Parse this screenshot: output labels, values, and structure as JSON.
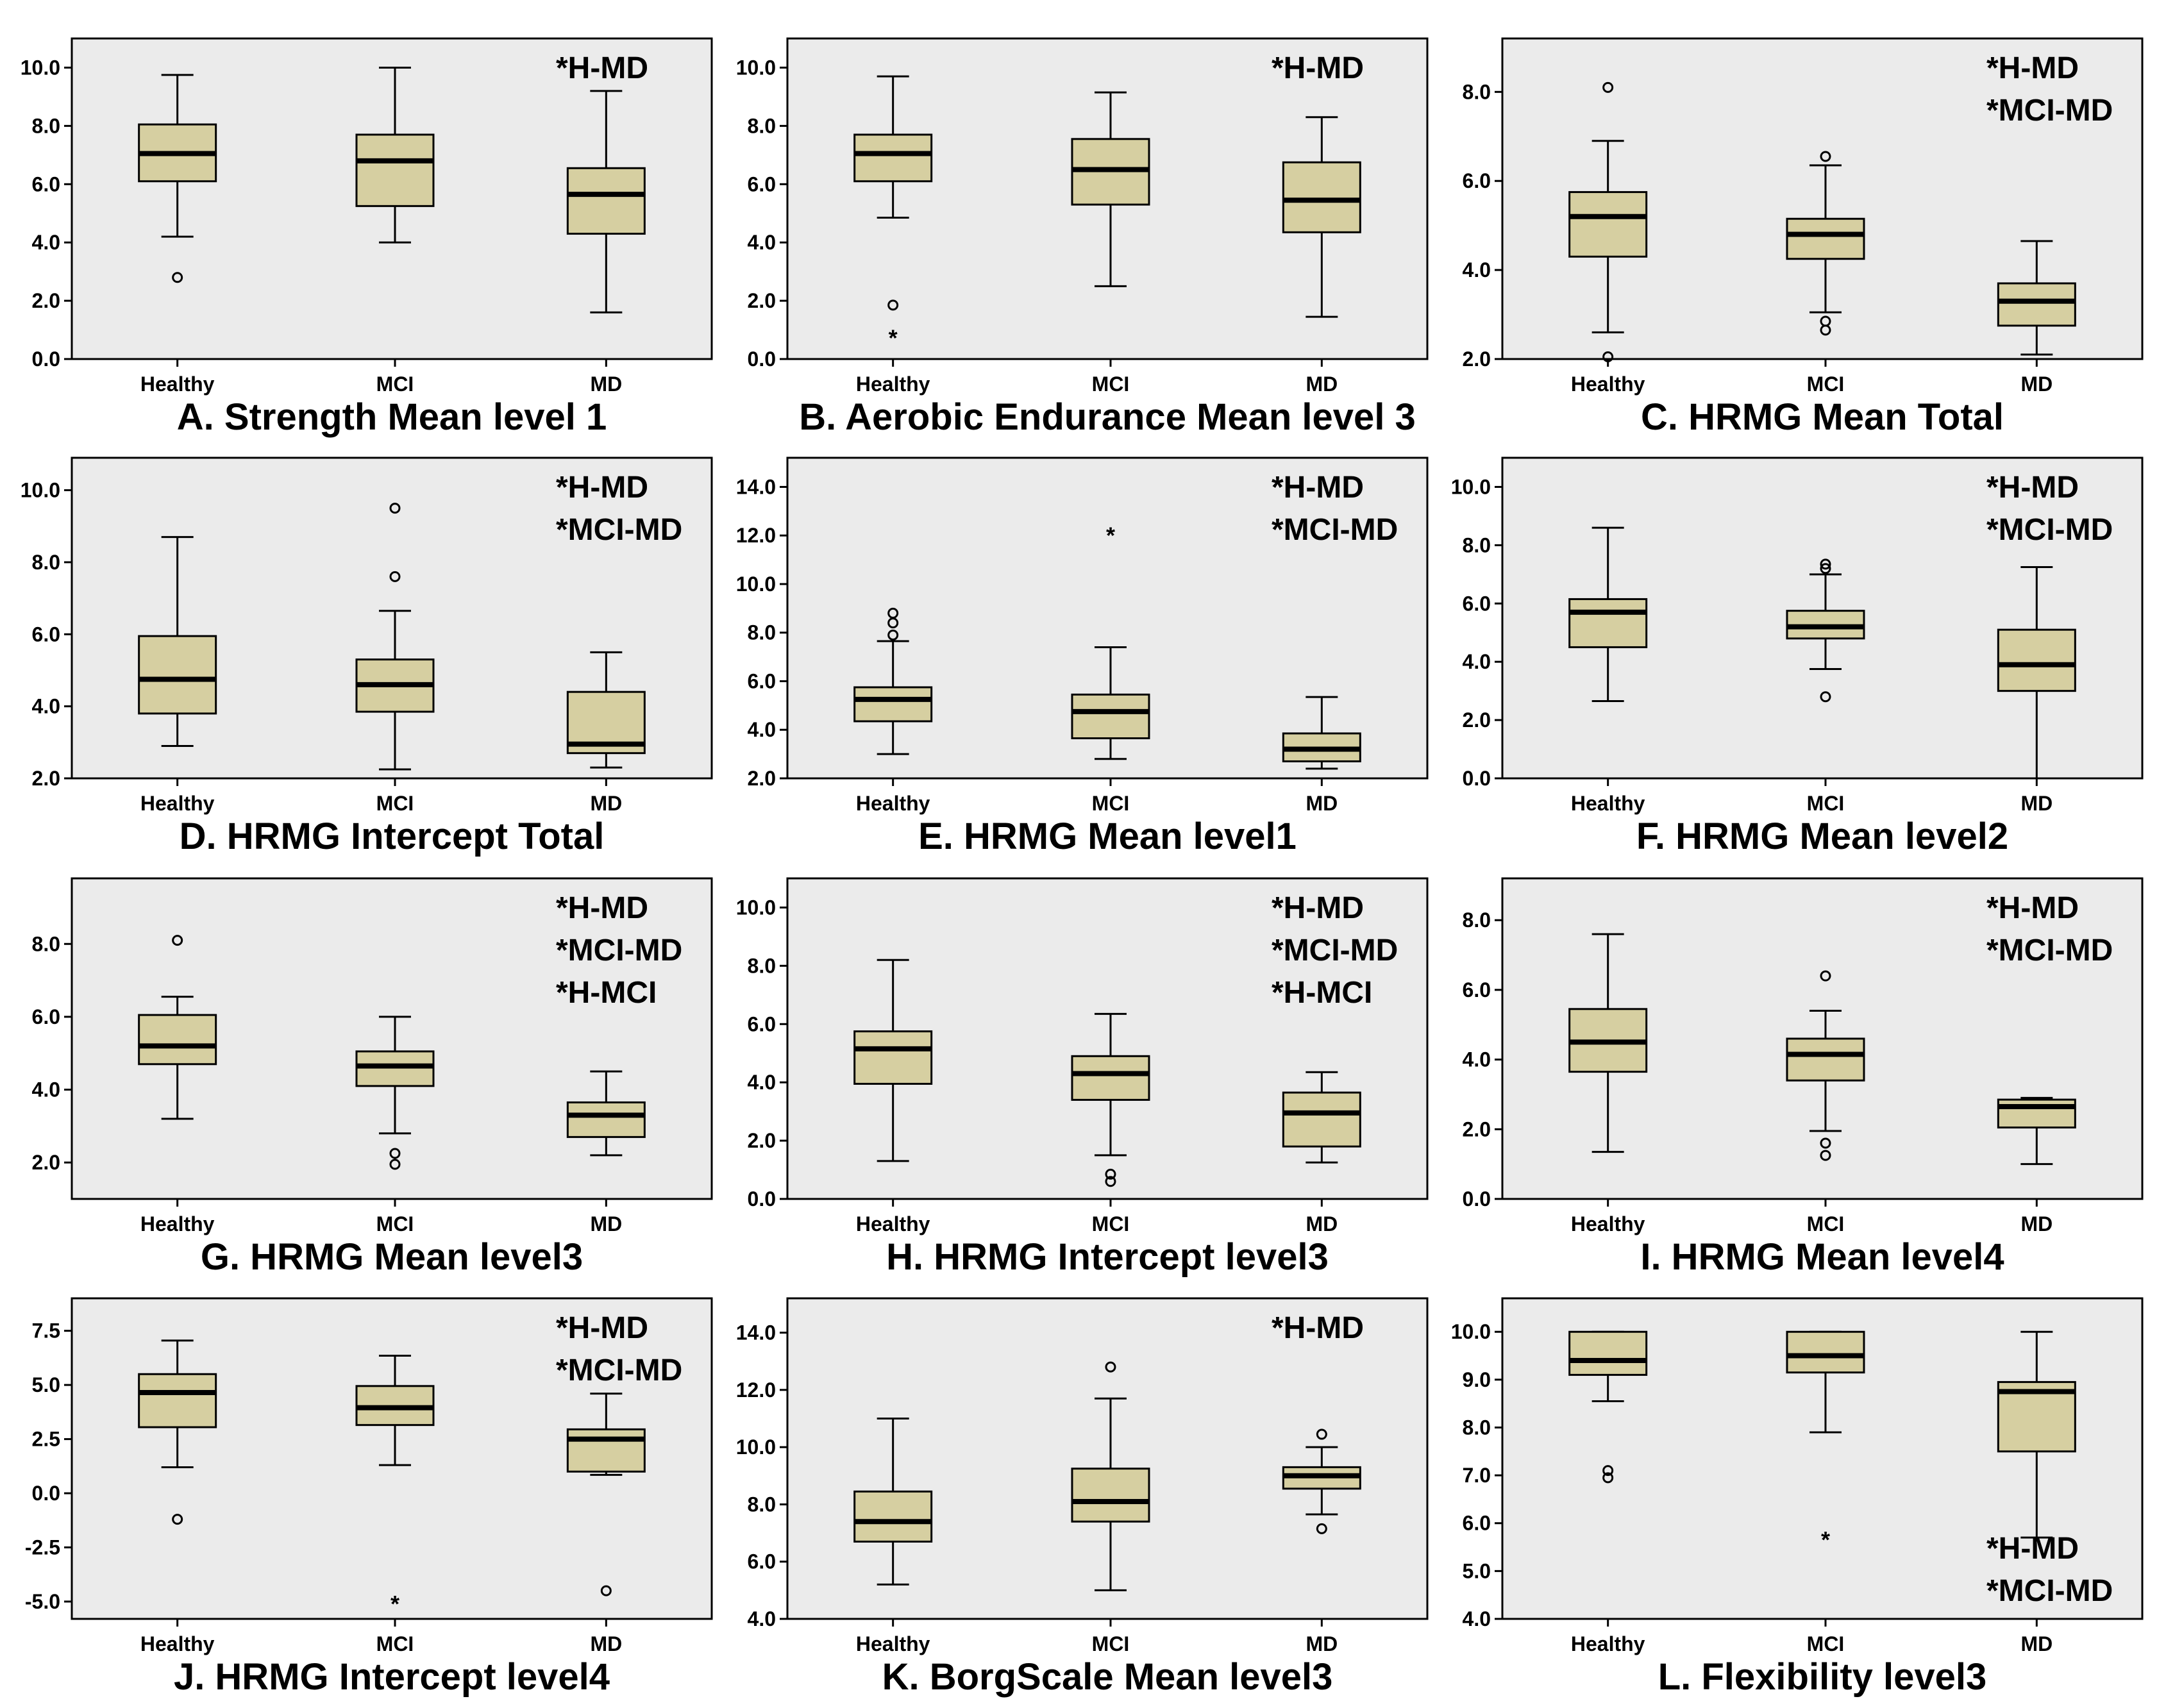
{
  "colors": {
    "panel_bg": "#ebebeb",
    "box_fill": "#d6cfa1",
    "stroke": "#000000"
  },
  "chart_data": [
    {
      "type": "boxplot",
      "title": "A. Strength Mean level 1",
      "categories": [
        "Healthy",
        "MCI",
        "MD"
      ],
      "yticks": [
        "0.0",
        "2.0",
        "4.0",
        "6.0",
        "8.0",
        "10.0"
      ],
      "ylim": [
        0,
        11
      ],
      "boxes": [
        {
          "min": 4.2,
          "q1": 6.1,
          "median": 7.05,
          "q3": 8.05,
          "max": 9.75
        },
        {
          "min": 4.0,
          "q1": 5.25,
          "median": 6.8,
          "q3": 7.7,
          "max": 10.0
        },
        {
          "min": 1.6,
          "q1": 4.3,
          "median": 5.65,
          "q3": 6.55,
          "max": 9.2
        }
      ],
      "outliers": [
        {
          "group": 0,
          "value": 2.8,
          "symbol": "circle"
        }
      ],
      "annotations": [
        "*H-MD"
      ]
    },
    {
      "type": "boxplot",
      "title": "B. Aerobic Endurance Mean level 3",
      "categories": [
        "Healthy",
        "MCI",
        "MD"
      ],
      "yticks": [
        "0.0",
        "2.0",
        "4.0",
        "6.0",
        "8.0",
        "10.0"
      ],
      "ylim": [
        0,
        11
      ],
      "boxes": [
        {
          "min": 4.85,
          "q1": 6.1,
          "median": 7.05,
          "q3": 7.7,
          "max": 9.7
        },
        {
          "min": 2.5,
          "q1": 5.3,
          "median": 6.5,
          "q3": 7.55,
          "max": 9.15
        },
        {
          "min": 1.45,
          "q1": 4.35,
          "median": 5.45,
          "q3": 6.75,
          "max": 8.3
        }
      ],
      "outliers": [
        {
          "group": 0,
          "value": 1.85,
          "symbol": "circle"
        },
        {
          "group": 0,
          "value": 0.8,
          "symbol": "star"
        }
      ],
      "annotations": [
        "*H-MD"
      ]
    },
    {
      "type": "boxplot",
      "title": "C. HRMG Mean Total",
      "categories": [
        "Healthy",
        "MCI",
        "MD"
      ],
      "yticks": [
        "2.0",
        "4.0",
        "6.0",
        "8.0"
      ],
      "ylim": [
        2,
        9.2
      ],
      "boxes": [
        {
          "min": 2.6,
          "q1": 4.3,
          "median": 5.2,
          "q3": 5.75,
          "max": 6.9
        },
        {
          "min": 3.05,
          "q1": 4.25,
          "median": 4.8,
          "q3": 5.15,
          "max": 6.35
        },
        {
          "min": 2.1,
          "q1": 2.75,
          "median": 3.3,
          "q3": 3.7,
          "max": 4.65
        }
      ],
      "outliers": [
        {
          "group": 0,
          "value": 8.1,
          "symbol": "circle"
        },
        {
          "group": 0,
          "value": 2.05,
          "symbol": "circle"
        },
        {
          "group": 1,
          "value": 6.55,
          "symbol": "circle"
        },
        {
          "group": 1,
          "value": 2.85,
          "symbol": "circle"
        },
        {
          "group": 1,
          "value": 2.65,
          "symbol": "circle"
        }
      ],
      "annotations": [
        "*H-MD",
        "*MCI-MD"
      ]
    },
    {
      "type": "boxplot",
      "title": "D. HRMG Intercept Total",
      "categories": [
        "Healthy",
        "MCI",
        "MD"
      ],
      "yticks": [
        "2.0",
        "4.0",
        "6.0",
        "8.0",
        "10.0"
      ],
      "ylim": [
        2,
        10.9
      ],
      "boxes": [
        {
          "min": 2.9,
          "q1": 3.8,
          "median": 4.75,
          "q3": 5.95,
          "max": 8.7
        },
        {
          "min": 2.25,
          "q1": 3.85,
          "median": 4.6,
          "q3": 5.3,
          "max": 6.65
        },
        {
          "min": 2.3,
          "q1": 2.7,
          "median": 2.95,
          "q3": 4.4,
          "max": 5.5
        }
      ],
      "outliers": [
        {
          "group": 1,
          "value": 9.5,
          "symbol": "circle"
        },
        {
          "group": 1,
          "value": 7.6,
          "symbol": "circle"
        }
      ],
      "annotations": [
        "*H-MD",
        "*MCI-MD"
      ]
    },
    {
      "type": "boxplot",
      "title": "E. HRMG Mean level1",
      "categories": [
        "Healthy",
        "MCI",
        "MD"
      ],
      "yticks": [
        "2.0",
        "4.0",
        "6.0",
        "8.0",
        "10.0",
        "12.0",
        "14.0"
      ],
      "ylim": [
        2,
        15.2
      ],
      "boxes": [
        {
          "min": 3.0,
          "q1": 4.35,
          "median": 5.25,
          "q3": 5.75,
          "max": 7.65
        },
        {
          "min": 2.8,
          "q1": 3.65,
          "median": 4.75,
          "q3": 5.45,
          "max": 7.4
        },
        {
          "min": 2.4,
          "q1": 2.7,
          "median": 3.2,
          "q3": 3.85,
          "max": 5.35
        }
      ],
      "outliers": [
        {
          "group": 0,
          "value": 8.8,
          "symbol": "circle"
        },
        {
          "group": 0,
          "value": 8.4,
          "symbol": "circle"
        },
        {
          "group": 0,
          "value": 7.9,
          "symbol": "circle"
        },
        {
          "group": 1,
          "value": 12.1,
          "symbol": "star"
        }
      ],
      "annotations": [
        "*H-MD",
        "*MCI-MD"
      ]
    },
    {
      "type": "boxplot",
      "title": "F. HRMG Mean level2",
      "categories": [
        "Healthy",
        "MCI",
        "MD"
      ],
      "yticks": [
        "0.0",
        "2.0",
        "4.0",
        "6.0",
        "8.0",
        "10.0"
      ],
      "ylim": [
        0,
        11
      ],
      "boxes": [
        {
          "min": 2.65,
          "q1": 4.5,
          "median": 5.7,
          "q3": 6.15,
          "max": 8.6
        },
        {
          "min": 3.75,
          "q1": 4.8,
          "median": 5.2,
          "q3": 5.75,
          "max": 7.0
        },
        {
          "min": 0.0,
          "q1": 3.0,
          "median": 3.9,
          "q3": 5.1,
          "max": 7.25
        }
      ],
      "outliers": [
        {
          "group": 1,
          "value": 7.35,
          "symbol": "circle"
        },
        {
          "group": 1,
          "value": 7.2,
          "symbol": "circle"
        },
        {
          "group": 1,
          "value": 2.8,
          "symbol": "circle"
        }
      ],
      "annotations": [
        "*H-MD",
        "*MCI-MD"
      ]
    },
    {
      "type": "boxplot",
      "title": "G. HRMG Mean level3",
      "categories": [
        "Healthy",
        "MCI",
        "MD"
      ],
      "yticks": [
        "2.0",
        "4.0",
        "6.0",
        "8.0"
      ],
      "ylim": [
        1,
        9.8
      ],
      "boxes": [
        {
          "min": 3.2,
          "q1": 4.7,
          "median": 5.2,
          "q3": 6.05,
          "max": 6.55
        },
        {
          "min": 2.8,
          "q1": 4.1,
          "median": 4.65,
          "q3": 5.05,
          "max": 6.0
        },
        {
          "min": 2.2,
          "q1": 2.7,
          "median": 3.3,
          "q3": 3.65,
          "max": 4.5
        }
      ],
      "outliers": [
        {
          "group": 0,
          "value": 8.1,
          "symbol": "circle"
        },
        {
          "group": 1,
          "value": 2.25,
          "symbol": "circle"
        },
        {
          "group": 1,
          "value": 1.95,
          "symbol": "circle"
        }
      ],
      "annotations": [
        "*H-MD",
        "*MCI-MD",
        "*H-MCI"
      ]
    },
    {
      "type": "boxplot",
      "title": "H. HRMG Intercept level3",
      "categories": [
        "Healthy",
        "MCI",
        "MD"
      ],
      "yticks": [
        "0.0",
        "2.0",
        "4.0",
        "6.0",
        "8.0",
        "10.0"
      ],
      "ylim": [
        0,
        11
      ],
      "boxes": [
        {
          "min": 1.3,
          "q1": 3.95,
          "median": 5.15,
          "q3": 5.75,
          "max": 8.2
        },
        {
          "min": 1.5,
          "q1": 3.4,
          "median": 4.3,
          "q3": 4.9,
          "max": 6.35
        },
        {
          "min": 1.25,
          "q1": 1.8,
          "median": 2.95,
          "q3": 3.65,
          "max": 4.35
        }
      ],
      "outliers": [
        {
          "group": 1,
          "value": 0.85,
          "symbol": "circle"
        },
        {
          "group": 1,
          "value": 0.6,
          "symbol": "circle"
        }
      ],
      "annotations": [
        "*H-MD",
        "*MCI-MD",
        "*H-MCI"
      ]
    },
    {
      "type": "boxplot",
      "title": "I. HRMG Mean level4",
      "categories": [
        "Healthy",
        "MCI",
        "MD"
      ],
      "yticks": [
        "0.0",
        "2.0",
        "4.0",
        "6.0",
        "8.0"
      ],
      "ylim": [
        0,
        9.2
      ],
      "boxes": [
        {
          "min": 1.35,
          "q1": 3.65,
          "median": 4.5,
          "q3": 5.45,
          "max": 7.6
        },
        {
          "min": 1.95,
          "q1": 3.4,
          "median": 4.15,
          "q3": 4.6,
          "max": 5.4
        },
        {
          "min": 1.0,
          "q1": 2.05,
          "median": 2.65,
          "q3": 2.85,
          "max": 2.9
        }
      ],
      "outliers": [
        {
          "group": 1,
          "value": 6.4,
          "symbol": "circle"
        },
        {
          "group": 1,
          "value": 1.6,
          "symbol": "circle"
        },
        {
          "group": 1,
          "value": 1.25,
          "symbol": "circle"
        }
      ],
      "annotations": [
        "*H-MD",
        "*MCI-MD"
      ]
    },
    {
      "type": "boxplot",
      "title": "J. HRMG Intercept level4",
      "categories": [
        "Healthy",
        "MCI",
        "MD"
      ],
      "yticks": [
        "-5.0",
        "-2.5",
        "0.0",
        "2.5",
        "5.0",
        "7.5"
      ],
      "ylim": [
        -5.8,
        9.0
      ],
      "boxes": [
        {
          "min": 1.2,
          "q1": 3.05,
          "median": 4.65,
          "q3": 5.5,
          "max": 7.05
        },
        {
          "min": 1.3,
          "q1": 3.15,
          "median": 3.95,
          "q3": 4.95,
          "max": 6.35
        },
        {
          "min": 0.85,
          "q1": 1.0,
          "median": 2.5,
          "q3": 2.95,
          "max": 4.6
        }
      ],
      "outliers": [
        {
          "group": 0,
          "value": -1.2,
          "symbol": "circle"
        },
        {
          "group": 1,
          "value": -5.0,
          "symbol": "star"
        },
        {
          "group": 2,
          "value": -4.5,
          "symbol": "circle"
        }
      ],
      "annotations": [
        "*H-MD",
        "*MCI-MD"
      ]
    },
    {
      "type": "boxplot",
      "title": "K. BorgScale Mean level3",
      "categories": [
        "Healthy",
        "MCI",
        "MD"
      ],
      "yticks": [
        "4.0",
        "6.0",
        "8.0",
        "10.0",
        "12.0",
        "14.0"
      ],
      "ylim": [
        4,
        15.2
      ],
      "boxes": [
        {
          "min": 5.2,
          "q1": 6.7,
          "median": 7.4,
          "q3": 8.45,
          "max": 11.0
        },
        {
          "min": 5.0,
          "q1": 7.4,
          "median": 8.1,
          "q3": 9.25,
          "max": 11.7
        },
        {
          "min": 7.65,
          "q1": 8.55,
          "median": 9.0,
          "q3": 9.3,
          "max": 10.0
        }
      ],
      "outliers": [
        {
          "group": 1,
          "value": 12.8,
          "symbol": "circle"
        },
        {
          "group": 2,
          "value": 10.45,
          "symbol": "circle"
        },
        {
          "group": 2,
          "value": 7.15,
          "symbol": "circle"
        }
      ],
      "annotations": [
        "*H-MD"
      ]
    },
    {
      "type": "boxplot",
      "title": "L. Flexibility level3",
      "categories": [
        "Healthy",
        "MCI",
        "MD"
      ],
      "yticks": [
        "4.0",
        "5.0",
        "6.0",
        "7.0",
        "8.0",
        "9.0",
        "10.0"
      ],
      "ylim": [
        4,
        10.7
      ],
      "boxes": [
        {
          "min": 8.55,
          "q1": 9.1,
          "median": 9.4,
          "q3": 10.0,
          "max": 10.0
        },
        {
          "min": 7.9,
          "q1": 9.15,
          "median": 9.5,
          "q3": 10.0,
          "max": 10.0
        },
        {
          "min": 5.7,
          "q1": 7.5,
          "median": 8.75,
          "q3": 8.95,
          "max": 10.0
        }
      ],
      "outliers": [
        {
          "group": 0,
          "value": 7.1,
          "symbol": "circle"
        },
        {
          "group": 0,
          "value": 6.95,
          "symbol": "circle"
        },
        {
          "group": 1,
          "value": 5.7,
          "symbol": "star"
        }
      ],
      "annotations": [
        "*H-MD",
        "*MCI-MD"
      ],
      "annotation_position": "bottom-right"
    }
  ]
}
